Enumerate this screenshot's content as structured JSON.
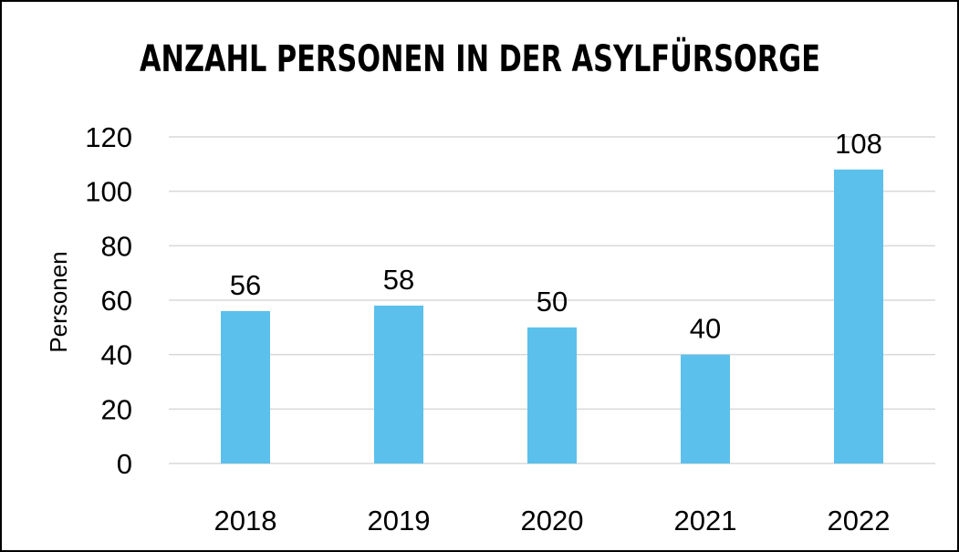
{
  "chart_data": {
    "type": "bar",
    "title": "ANZAHL PERSONEN IN DER ASYLFÜRSORGE",
    "xlabel": "",
    "ylabel": "Personen",
    "categories": [
      "2018",
      "2019",
      "2020",
      "2021",
      "2022"
    ],
    "values": [
      56,
      58,
      50,
      40,
      108
    ],
    "data_labels": [
      "56",
      "58",
      "50",
      "40",
      "108"
    ],
    "yticks": [
      "0",
      "20",
      "40",
      "60",
      "80",
      "100",
      "120"
    ],
    "ylim": [
      0,
      120
    ],
    "grid": true,
    "legend": "none",
    "bar_color": "#5bc0eb",
    "grid_color": "#d9d9d9"
  }
}
